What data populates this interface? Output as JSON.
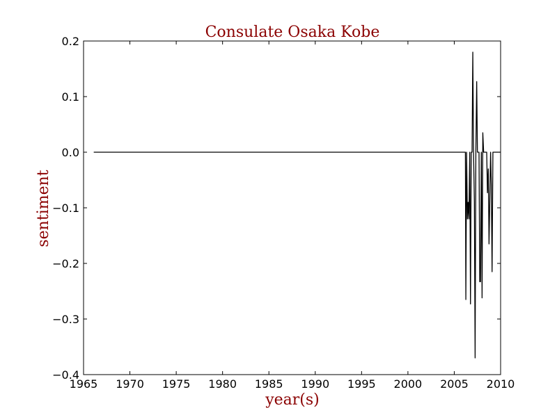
{
  "chart_data": {
    "type": "line",
    "title": "Consulate Osaka Kobe",
    "xlabel": "year(s)",
    "ylabel": "sentiment",
    "xlim": [
      1965,
      2010
    ],
    "ylim": [
      -0.4,
      0.2
    ],
    "xticks": [
      1965,
      1970,
      1975,
      1980,
      1985,
      1990,
      1995,
      2000,
      2005,
      2010
    ],
    "yticks": [
      0.2,
      0.1,
      0.0,
      -0.1,
      -0.2,
      -0.3,
      -0.4
    ],
    "ytick_labels": [
      "0.2",
      "0.1",
      "0.0",
      "−0.1",
      "−0.2",
      "−0.3",
      "−0.4"
    ],
    "grid": false,
    "line_color": "#000000",
    "title_color": "#8b0000",
    "series": [
      {
        "x": [
          1966.1,
          2006.2,
          2006.25,
          2006.33,
          2006.42,
          2006.5,
          2006.58,
          2006.67,
          2006.75,
          2006.83,
          2006.92,
          2007.0,
          2007.08,
          2007.17,
          2007.25,
          2007.33,
          2007.42,
          2007.5,
          2007.58,
          2007.67,
          2007.75,
          2007.83,
          2007.92,
          2008.0,
          2008.08,
          2008.17,
          2008.25,
          2008.33,
          2008.42,
          2008.5,
          2008.58,
          2008.67,
          2008.75,
          2008.83,
          2008.92,
          2009.0,
          2009.08,
          2009.17,
          2009.25,
          2009.33,
          2009.42,
          2009.5,
          2009.58,
          2009.67,
          2009.75,
          2009.83,
          2009.92,
          2010.0
        ],
        "y": [
          0.0,
          0.0,
          -0.265,
          0.0,
          -0.12,
          -0.09,
          -0.12,
          0.0,
          -0.273,
          0.0,
          0.0,
          0.18,
          0.0,
          -0.09,
          -0.37,
          0.0,
          0.127,
          0.0,
          0.0,
          0.0,
          -0.233,
          -0.233,
          0.0,
          -0.262,
          0.035,
          0.0,
          0.0,
          0.0,
          0.0,
          0.0,
          -0.073,
          -0.03,
          -0.165,
          -0.09,
          0.0,
          -0.06,
          -0.215,
          0.0,
          0.0,
          0.0,
          0.0,
          0.0,
          0.0,
          0.0,
          0.0,
          0.0,
          0.0,
          0.0
        ]
      }
    ]
  }
}
